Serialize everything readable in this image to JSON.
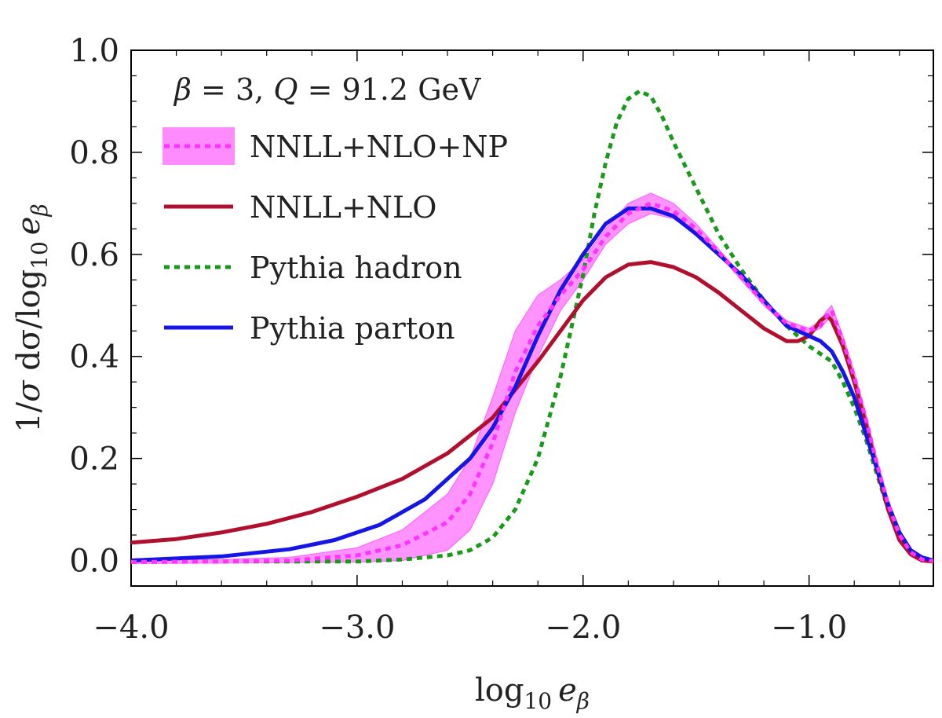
{
  "chart_data": {
    "type": "line",
    "annotation": {
      "param_name": "β",
      "param_value": "3",
      "energy_label": "Q",
      "energy_value": "91.2",
      "energy_unit": "GeV"
    },
    "xlabel": {
      "base": "log",
      "base_sub": "10",
      "var": "e",
      "var_sub": "β"
    },
    "ylabel": {
      "pre": "1/",
      "sigma": "σ",
      "mid": " dσ/",
      "log": "log",
      "log_sub": "10",
      "var": "e",
      "var_sub": "β"
    },
    "xlim": [
      -4.0,
      -0.45
    ],
    "ylim": [
      -0.05,
      1.0
    ],
    "x_ticks": [
      -4.0,
      -3.0,
      -2.0,
      -1.0
    ],
    "x_tick_labels": [
      "−4.0",
      "−3.0",
      "−2.0",
      "−1.0"
    ],
    "y_ticks": [
      0.0,
      0.2,
      0.4,
      0.6,
      0.8,
      1.0
    ],
    "y_tick_labels": [
      "0.0",
      "0.2",
      "0.4",
      "0.6",
      "0.8",
      "1.0"
    ],
    "legend": [
      {
        "label": "NNLL+NLO+NP",
        "series": "nnll_nlo_np",
        "style": "band-dotted"
      },
      {
        "label": "NNLL+NLO",
        "series": "nnll_nlo",
        "style": "solid"
      },
      {
        "label": "Pythia hadron",
        "series": "pythia_hadron",
        "style": "dotted"
      },
      {
        "label": "Pythia parton",
        "series": "pythia_parton",
        "style": "solid"
      }
    ],
    "band": {
      "name": "NNLL+NLO+NP uncertainty band",
      "color": "#ff66ff",
      "x": [
        -4.0,
        -3.6,
        -3.3,
        -3.0,
        -2.8,
        -2.6,
        -2.5,
        -2.4,
        -2.3,
        -2.2,
        -2.1,
        -2.0,
        -1.9,
        -1.8,
        -1.7,
        -1.6,
        -1.5,
        -1.4,
        -1.3,
        -1.2,
        -1.1,
        -1.0,
        -0.95,
        -0.92,
        -0.9,
        -0.85,
        -0.8,
        -0.75,
        -0.7,
        -0.65,
        -0.6,
        -0.55,
        -0.5,
        -0.45
      ],
      "upper": [
        0.0,
        0.002,
        0.006,
        0.025,
        0.06,
        0.13,
        0.2,
        0.32,
        0.45,
        0.52,
        0.55,
        0.59,
        0.65,
        0.7,
        0.72,
        0.7,
        0.66,
        0.61,
        0.56,
        0.51,
        0.47,
        0.455,
        0.47,
        0.49,
        0.5,
        0.44,
        0.37,
        0.29,
        0.2,
        0.12,
        0.06,
        0.02,
        0.003,
        0.0
      ],
      "lower": [
        -0.006,
        -0.005,
        -0.004,
        -0.003,
        0.0,
        0.02,
        0.06,
        0.15,
        0.29,
        0.4,
        0.49,
        0.55,
        0.62,
        0.66,
        0.68,
        0.67,
        0.64,
        0.6,
        0.55,
        0.5,
        0.46,
        0.445,
        0.455,
        0.47,
        0.48,
        0.42,
        0.35,
        0.27,
        0.18,
        0.1,
        0.04,
        0.012,
        0.0,
        -0.002
      ]
    },
    "series": [
      {
        "name": "Pythia hadron",
        "key": "pythia_hadron",
        "color": "#1a9a1a",
        "dash": "dotted",
        "x": [
          -4.0,
          -3.5,
          -3.0,
          -2.8,
          -2.6,
          -2.5,
          -2.4,
          -2.3,
          -2.2,
          -2.1,
          -2.05,
          -2.0,
          -1.95,
          -1.9,
          -1.85,
          -1.8,
          -1.75,
          -1.7,
          -1.65,
          -1.6,
          -1.5,
          -1.4,
          -1.3,
          -1.2,
          -1.1,
          -1.0,
          -0.9,
          -0.85,
          -0.8,
          -0.75,
          -0.7,
          -0.65,
          -0.6,
          -0.55,
          -0.5,
          -0.45
        ],
        "values": [
          -0.002,
          -0.002,
          -0.002,
          0.002,
          0.01,
          0.02,
          0.045,
          0.1,
          0.2,
          0.36,
          0.46,
          0.56,
          0.68,
          0.78,
          0.86,
          0.905,
          0.92,
          0.91,
          0.87,
          0.82,
          0.73,
          0.64,
          0.57,
          0.51,
          0.46,
          0.42,
          0.39,
          0.35,
          0.3,
          0.24,
          0.17,
          0.1,
          0.05,
          0.02,
          0.005,
          0.0
        ]
      },
      {
        "name": "NNLL+NLO",
        "key": "nnll_nlo",
        "color": "#b0102e",
        "dash": "solid",
        "x": [
          -4.0,
          -3.8,
          -3.6,
          -3.4,
          -3.2,
          -3.0,
          -2.8,
          -2.6,
          -2.4,
          -2.2,
          -2.0,
          -1.9,
          -1.8,
          -1.7,
          -1.6,
          -1.5,
          -1.4,
          -1.3,
          -1.2,
          -1.1,
          -1.05,
          -1.0,
          -0.95,
          -0.92,
          -0.9,
          -0.85,
          -0.8,
          -0.75,
          -0.7,
          -0.65,
          -0.6,
          -0.55,
          -0.5,
          -0.45
        ],
        "values": [
          0.035,
          0.042,
          0.055,
          0.072,
          0.095,
          0.125,
          0.16,
          0.21,
          0.28,
          0.39,
          0.51,
          0.555,
          0.58,
          0.585,
          0.575,
          0.555,
          0.525,
          0.49,
          0.455,
          0.43,
          0.43,
          0.44,
          0.47,
          0.48,
          0.47,
          0.42,
          0.35,
          0.27,
          0.18,
          0.1,
          0.04,
          0.012,
          0.0,
          -0.002
        ]
      },
      {
        "name": "Pythia parton",
        "key": "pythia_parton",
        "color": "#1515e6",
        "dash": "solid",
        "x": [
          -4.0,
          -3.6,
          -3.3,
          -3.1,
          -2.9,
          -2.7,
          -2.5,
          -2.4,
          -2.3,
          -2.2,
          -2.1,
          -2.0,
          -1.9,
          -1.8,
          -1.7,
          -1.6,
          -1.5,
          -1.4,
          -1.3,
          -1.2,
          -1.1,
          -1.0,
          -0.95,
          -0.9,
          -0.85,
          -0.8,
          -0.75,
          -0.7,
          -0.65,
          -0.6,
          -0.55,
          -0.5,
          -0.45
        ],
        "values": [
          0.0,
          0.008,
          0.022,
          0.04,
          0.07,
          0.12,
          0.2,
          0.26,
          0.34,
          0.44,
          0.53,
          0.6,
          0.66,
          0.69,
          0.69,
          0.675,
          0.64,
          0.6,
          0.56,
          0.51,
          0.46,
          0.44,
          0.43,
          0.41,
          0.37,
          0.32,
          0.25,
          0.18,
          0.11,
          0.055,
          0.02,
          0.006,
          0.0
        ]
      },
      {
        "name": "NNLL+NLO+NP",
        "key": "nnll_nlo_np",
        "color": "#ff33ff",
        "dash": "dotted",
        "x": [
          -4.0,
          -3.6,
          -3.3,
          -3.0,
          -2.8,
          -2.6,
          -2.5,
          -2.4,
          -2.3,
          -2.2,
          -2.1,
          -2.0,
          -1.9,
          -1.8,
          -1.7,
          -1.6,
          -1.5,
          -1.4,
          -1.3,
          -1.2,
          -1.1,
          -1.0,
          -0.95,
          -0.92,
          -0.9,
          -0.85,
          -0.8,
          -0.75,
          -0.7,
          -0.65,
          -0.6,
          -0.55,
          -0.5,
          -0.45
        ],
        "values": [
          -0.003,
          -0.002,
          0.0,
          0.01,
          0.03,
          0.075,
          0.13,
          0.23,
          0.37,
          0.46,
          0.52,
          0.57,
          0.635,
          0.68,
          0.7,
          0.685,
          0.65,
          0.605,
          0.555,
          0.505,
          0.465,
          0.45,
          0.46,
          0.48,
          0.49,
          0.43,
          0.36,
          0.28,
          0.19,
          0.11,
          0.05,
          0.016,
          0.002,
          -0.001
        ]
      }
    ]
  }
}
